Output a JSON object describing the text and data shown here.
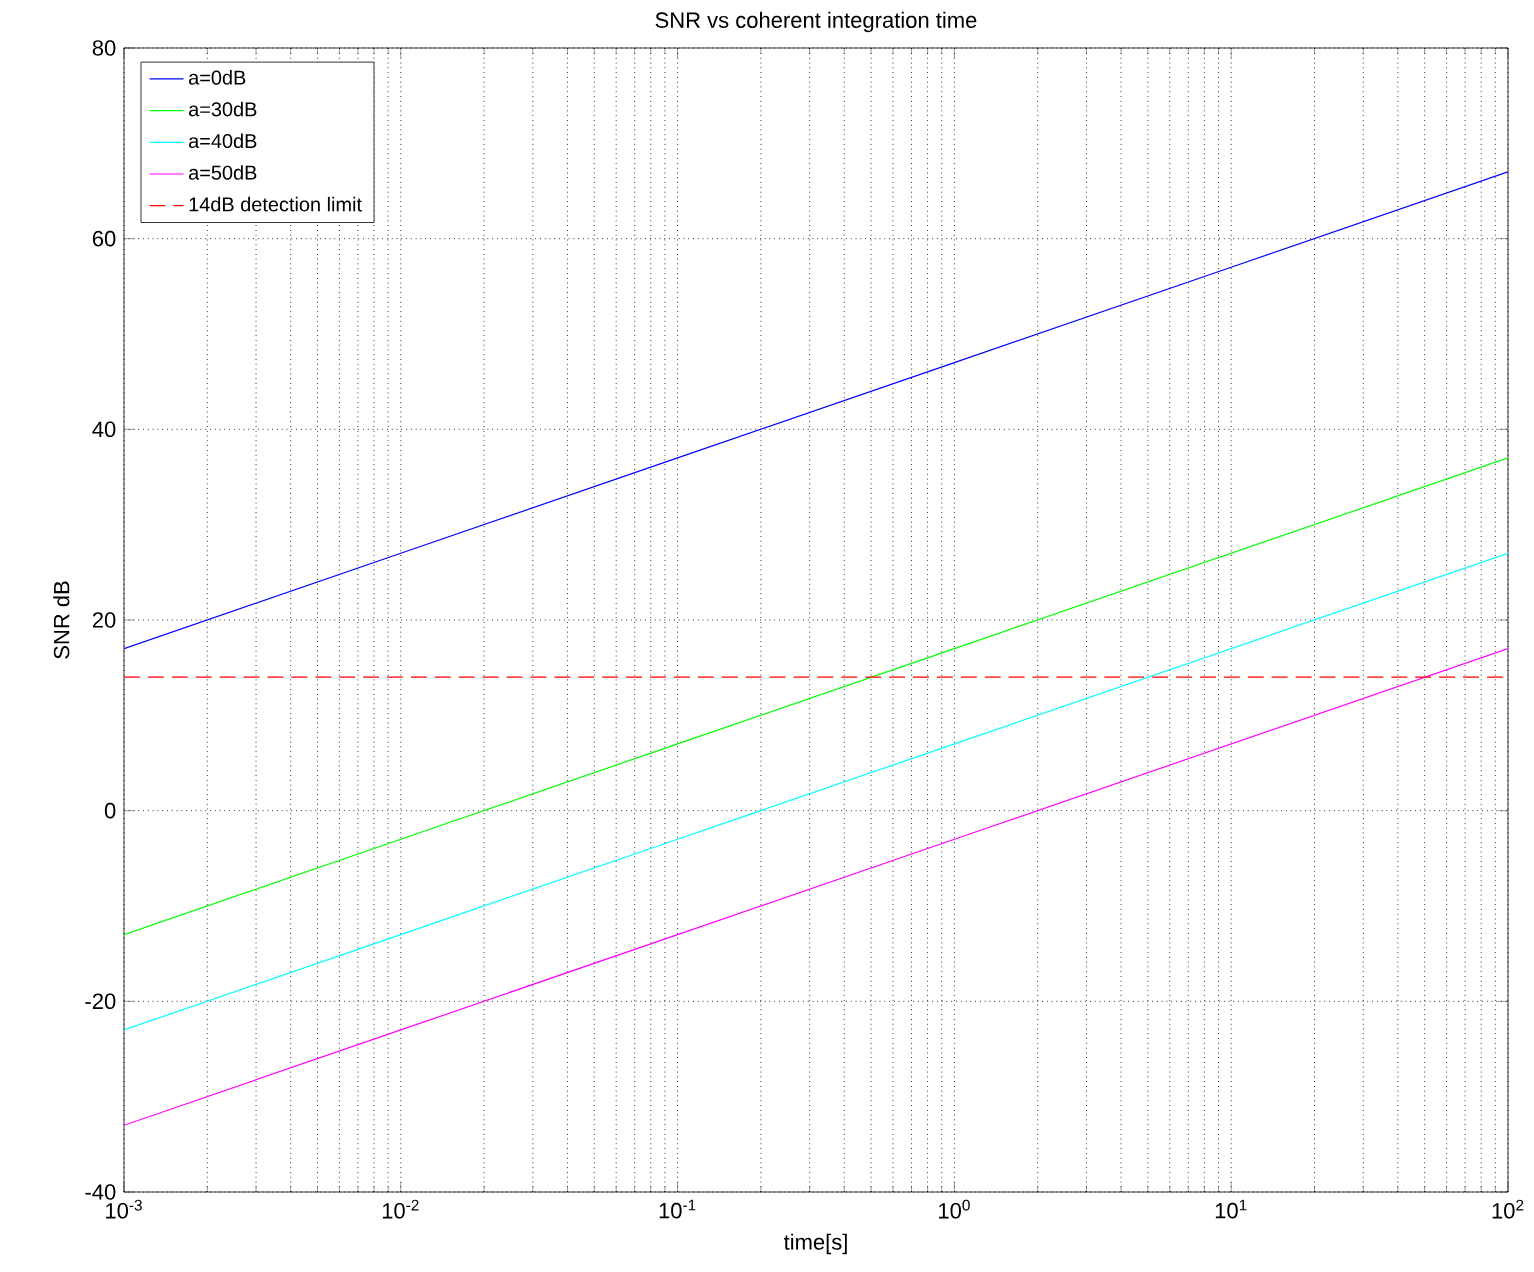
{
  "chart_data": {
    "type": "line",
    "title": "SNR vs coherent integration time",
    "xlabel": "time[s]",
    "ylabel": "SNR dB",
    "x": [
      0.001,
      0.01,
      0.1,
      1,
      10,
      100
    ],
    "series": [
      {
        "name": "a=0dB",
        "color": "#0000ff",
        "values": [
          17,
          27,
          37,
          47,
          57,
          67
        ]
      },
      {
        "name": "a=30dB",
        "color": "#00ff00",
        "values": [
          -13,
          -3,
          7,
          17,
          27,
          37
        ]
      },
      {
        "name": "a=40dB",
        "color": "#00ffff",
        "values": [
          -23,
          -13,
          -3,
          7,
          17,
          27
        ]
      },
      {
        "name": "a=50dB",
        "color": "#ff00ff",
        "values": [
          -33,
          -23,
          -13,
          -3,
          7,
          17
        ]
      }
    ],
    "ref_lines": [
      {
        "axis": "y",
        "value": 14,
        "label": "14dB detection limit",
        "color": "#ff0000",
        "line_style": "dashed"
      }
    ],
    "log": "x",
    "xlim": [
      0.001,
      100
    ],
    "xticks": [
      {
        "value": 0.001,
        "label": "10$^{-3}$"
      },
      {
        "value": 0.01,
        "label": "10$^{-2}$"
      },
      {
        "value": 0.1,
        "label": "10$^{-1}$"
      },
      {
        "value": 1,
        "label": "10$^{0}$"
      },
      {
        "value": 10,
        "label": "10$^{1}$"
      },
      {
        "value": 100,
        "label": "10$^{2}$"
      }
    ],
    "ylim": [
      -40,
      80
    ],
    "yticks": [
      -40,
      -20,
      0,
      20,
      40,
      60,
      80
    ],
    "grid": true,
    "legend": "top left",
    "marker": "none",
    "line_style": "solid"
  }
}
